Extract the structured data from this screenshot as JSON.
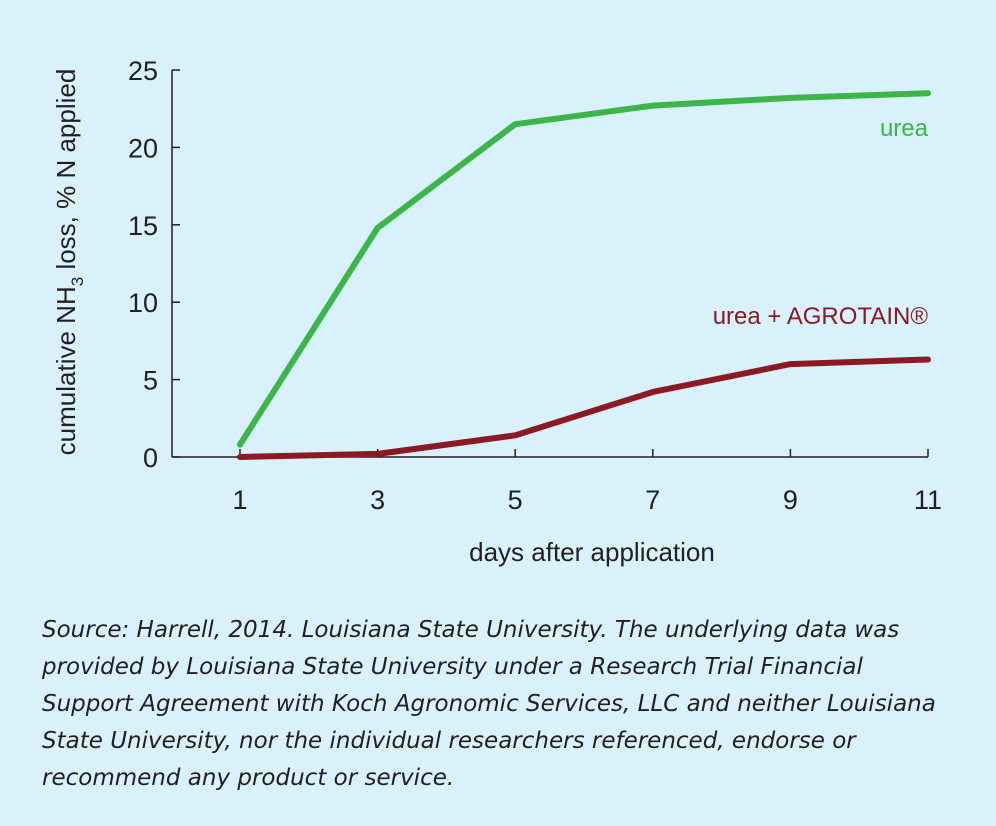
{
  "chart_data": {
    "type": "line",
    "title": "",
    "xlabel": "days after application",
    "ylabel_main": "cumulative NH",
    "ylabel_sub": "3",
    "ylabel_rest": " loss, % N applied",
    "x": [
      1,
      3,
      5,
      7,
      9,
      11
    ],
    "xlim": [
      1,
      11
    ],
    "ylim": [
      0,
      25
    ],
    "yticks": [
      0,
      5,
      10,
      15,
      20,
      25
    ],
    "grid": false,
    "series": [
      {
        "name": "urea",
        "color": "#3cb54a",
        "values": [
          0.8,
          14.8,
          21.5,
          22.7,
          23.2,
          23.5
        ]
      },
      {
        "name": "urea + AGROTAIN®",
        "color": "#8b1a24",
        "values": [
          0.0,
          0.2,
          1.4,
          4.2,
          6.0,
          6.3
        ]
      }
    ]
  },
  "source_note": "Source: Harrell, 2014. Louisiana State University. The underlying data was provided by Louisiana State University under a Research Trial Financial Support Agreement with Koch Agronomic Services, LLC and neither Louisiana State University, nor the individual researchers referenced, endorse or recommend any product or service."
}
